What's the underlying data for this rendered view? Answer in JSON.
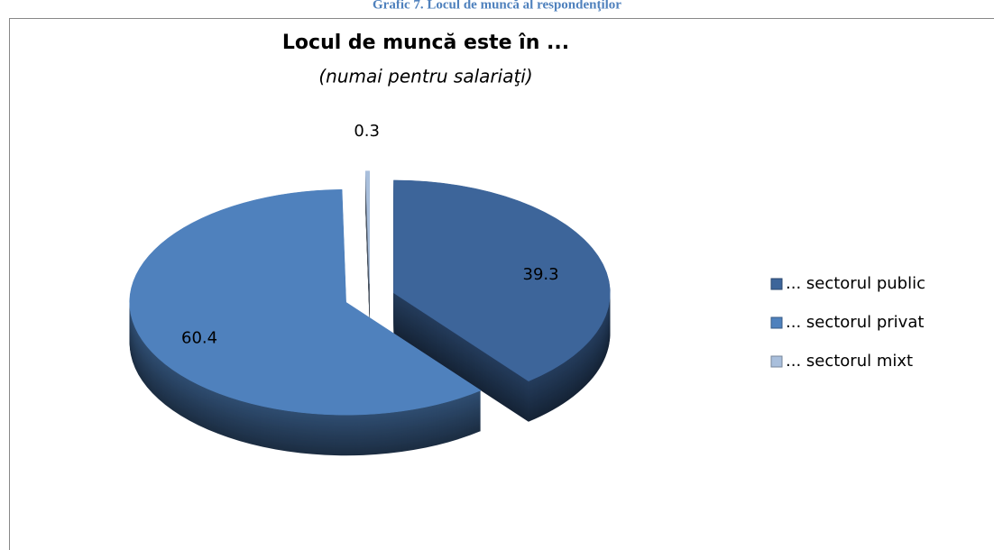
{
  "caption": "Grafic 7. Locul de muncă al respondenţilor",
  "chart_data": {
    "type": "pie3d",
    "title": "Locul de muncă este în ...",
    "subtitle": "(numai pentru salariaţi)",
    "categories": [
      "... sectorul public",
      "... sectorul privat",
      "... sectorul mixt"
    ],
    "values": [
      39.3,
      60.4,
      0.3
    ],
    "colors": [
      "#3d659a",
      "#4f81bd",
      "#a9bfdc"
    ],
    "legend": "right"
  }
}
